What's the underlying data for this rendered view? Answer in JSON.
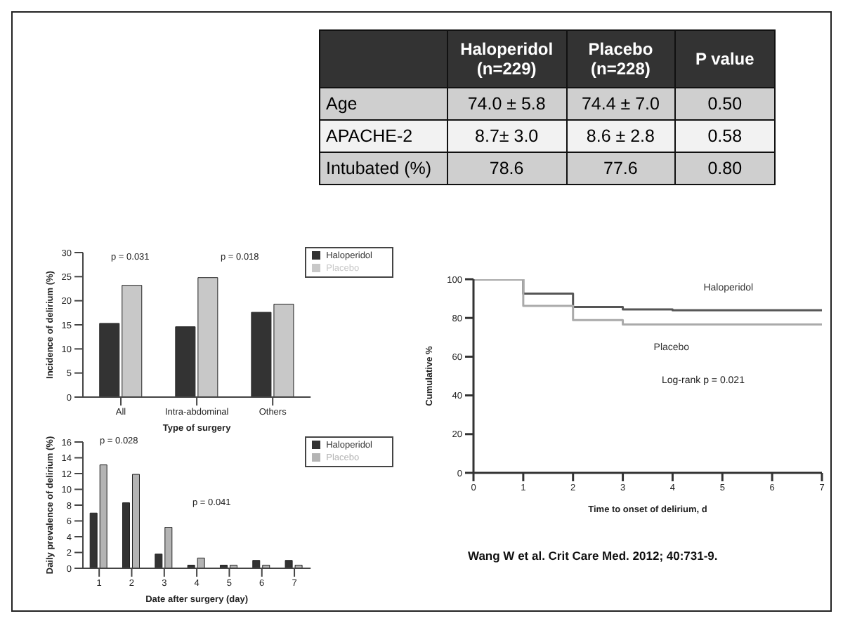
{
  "chart_data": [
    {
      "type": "other",
      "categories": [
        null,
        "Haloperidol (n=229)",
        "Placebo (n=228)",
        "P value"
      ],
      "y_categories": [
        "Age",
        "APACHE-2",
        "Intubated (%)"
      ],
      "cell_labels": [
        [
          "74.0 ± 5.8",
          "74.4 ± 7.0",
          "0.50"
        ],
        [
          "8.7± 3.0",
          "8.6 ± 2.8",
          "0.58"
        ],
        [
          "78.6",
          "77.6",
          "0.80"
        ]
      ]
    },
    {
      "type": "bar",
      "categories": [
        "All",
        "Intra-abdominal",
        "Others"
      ],
      "xlabel": "Type of surgery",
      "ylabel": "Incidence of delirium (%)",
      "ylim": [
        0,
        30
      ],
      "yticks": [
        0,
        5,
        10,
        15,
        20,
        25,
        30
      ],
      "legend": "top right",
      "series": [
        {
          "name": "Haloperidol",
          "color": "#333333",
          "values": [
            15.3,
            14.6,
            17.6
          ]
        },
        {
          "name": "Placebo",
          "color": "#c8c8c8",
          "values": [
            23.2,
            24.8,
            19.3
          ]
        }
      ],
      "annotations": [
        "p = 0.031",
        "p = 0.018"
      ]
    },
    {
      "type": "bar",
      "categories": [
        "1",
        "2",
        "3",
        "4",
        "5",
        "6",
        "7"
      ],
      "xlabel": "Date after surgery (day)",
      "ylabel": "Daily prevalence of delirium (%)",
      "ylim": [
        0,
        16
      ],
      "yticks": [
        0,
        2,
        4,
        6,
        8,
        10,
        12,
        14,
        16
      ],
      "legend": "top right",
      "series": [
        {
          "name": "Haloperidol",
          "color": "#333333",
          "values": [
            7.0,
            8.3,
            1.8,
            0.4,
            0.4,
            1.0,
            1.0
          ]
        },
        {
          "name": "Placebo",
          "color": "#b4b4b4",
          "values": [
            13.1,
            11.9,
            5.2,
            1.3,
            0.4,
            0.4,
            0.4
          ]
        }
      ],
      "annotations": [
        "p = 0.028",
        "p = 0.041"
      ]
    },
    {
      "type": "step",
      "xlabel": "Time to onset of delirium, d",
      "ylabel": "Cumulative %",
      "xlim": [
        0,
        7
      ],
      "xticks": [
        0,
        1,
        2,
        3,
        4,
        5,
        6,
        7
      ],
      "ylim": [
        0,
        100
      ],
      "yticks": [
        0,
        20,
        40,
        60,
        80,
        100
      ],
      "series": [
        {
          "name": "Haloperidol",
          "color": "#555555",
          "x": [
            0,
            1,
            2,
            3,
            4,
            7
          ],
          "values": [
            100,
            92.6,
            85.7,
            84.4,
            84,
            84
          ]
        },
        {
          "name": "Placebo",
          "color": "#aaaaaa",
          "x": [
            0,
            1,
            2,
            3,
            7
          ],
          "values": [
            100,
            86.2,
            78.9,
            76.6,
            76.6
          ]
        }
      ],
      "annotations": [
        "Log-rank p = 0.021",
        "Wang W et al. Crit Care Med. 2012; 40:731-9."
      ]
    }
  ]
}
